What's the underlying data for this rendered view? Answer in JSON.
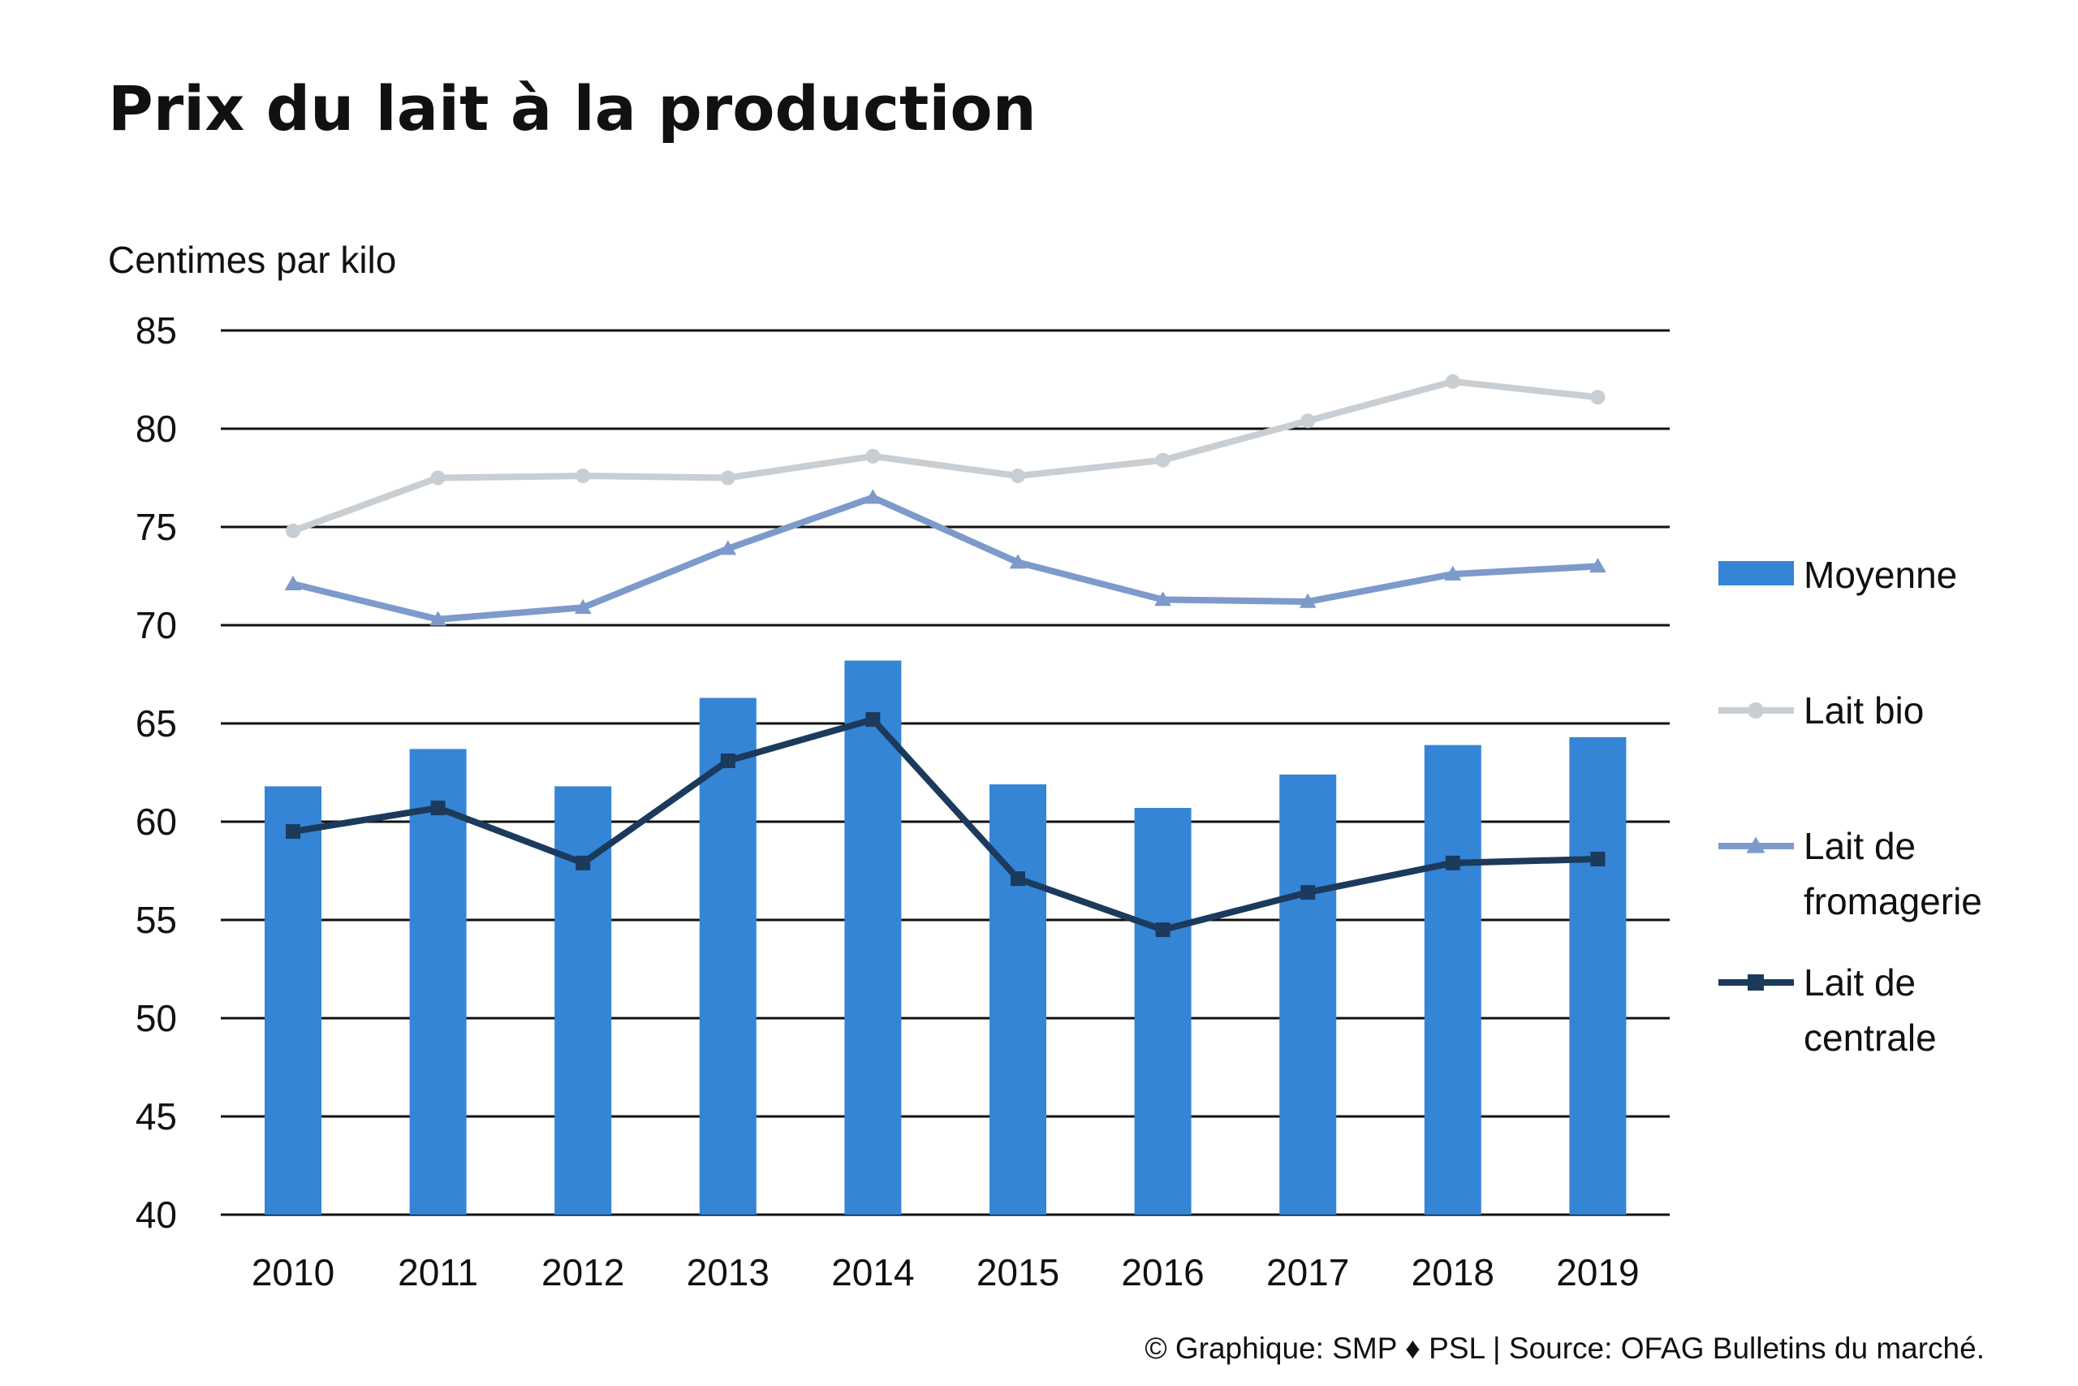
{
  "chart_data": {
    "type": "bar",
    "title": "Prix du lait à la production",
    "ylabel": "Centimes par kilo",
    "xlabel": "",
    "categories": [
      "2010",
      "2011",
      "2012",
      "2013",
      "2014",
      "2015",
      "2016",
      "2017",
      "2018",
      "2019"
    ],
    "ylim": [
      40,
      85
    ],
    "yticks": [
      85,
      80,
      75,
      70,
      65,
      60,
      55,
      50,
      45,
      40
    ],
    "grid": true,
    "legend_position": "right",
    "series": [
      {
        "name": "Moyenne",
        "type": "bar",
        "color": "#3585d6",
        "marker": "none",
        "values": [
          61.8,
          63.7,
          61.8,
          66.3,
          68.2,
          61.9,
          60.7,
          62.4,
          63.9,
          64.3
        ]
      },
      {
        "name": "Lait bio",
        "type": "line",
        "color": "#c9ced3",
        "marker": "circle",
        "values": [
          74.8,
          77.5,
          77.6,
          77.5,
          78.6,
          77.6,
          78.4,
          80.4,
          82.4,
          81.6
        ]
      },
      {
        "name": "Lait de fromagerie",
        "type": "line",
        "color": "#7d9acb",
        "marker": "triangle",
        "values": [
          72.1,
          70.3,
          70.9,
          73.9,
          76.5,
          73.2,
          71.3,
          71.2,
          72.6,
          73.0
        ]
      },
      {
        "name": "Lait de centrale",
        "type": "line",
        "color": "#1b3a5c",
        "marker": "square",
        "values": [
          59.5,
          60.7,
          57.9,
          63.1,
          65.2,
          57.1,
          54.5,
          56.4,
          57.9,
          58.1
        ]
      }
    ],
    "legend": [
      {
        "lines": [
          "Moyenne"
        ],
        "series": 0
      },
      {
        "lines": [
          "Lait bio"
        ],
        "series": 1
      },
      {
        "lines": [
          "Lait de",
          "fromagerie"
        ],
        "series": 2
      },
      {
        "lines": [
          "Lait de",
          "centrale"
        ],
        "series": 3
      }
    ],
    "credit": "© Graphique: SMP ♦ PSL | Source: OFAG Bulletins du marché."
  }
}
